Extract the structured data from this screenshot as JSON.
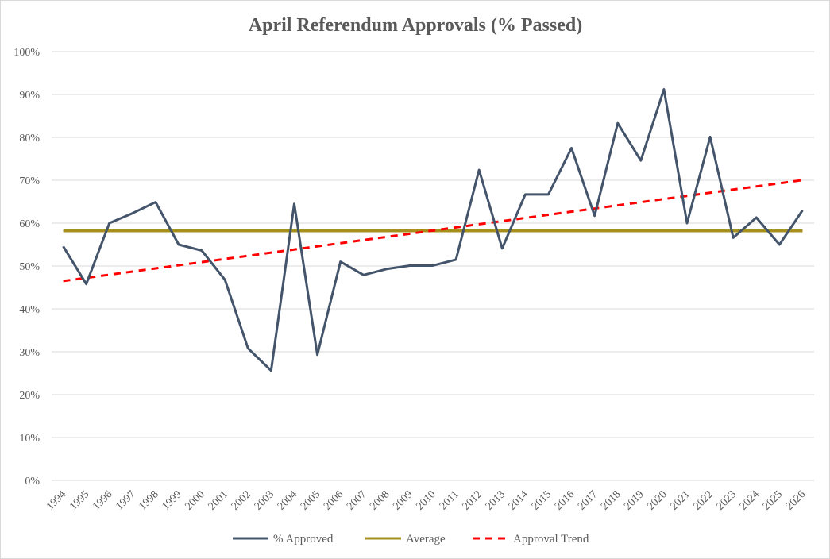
{
  "chart_data": {
    "type": "line",
    "title": "April Referendum Approvals (% Passed)",
    "xlabel": "",
    "ylabel": "",
    "categories": [
      "1994",
      "1995",
      "1996",
      "1997",
      "1998",
      "1999",
      "2000",
      "2001",
      "2002",
      "2003",
      "2004",
      "2005",
      "2006",
      "2007",
      "2008",
      "2009",
      "2010",
      "2011",
      "2012",
      "2013",
      "2014",
      "2015",
      "2016",
      "2017",
      "2018",
      "2019",
      "2020",
      "2021",
      "2022",
      "2023",
      "2024",
      "2025",
      "2026"
    ],
    "ylim": [
      0,
      100
    ],
    "yticks": [
      0,
      10,
      20,
      30,
      40,
      50,
      60,
      70,
      80,
      90,
      100
    ],
    "ytick_labels": [
      "0%",
      "10%",
      "20%",
      "30%",
      "40%",
      "50%",
      "60%",
      "70%",
      "80%",
      "90%",
      "100%"
    ],
    "grid": true,
    "legend_position": "bottom",
    "series": [
      {
        "name": "% Approved",
        "style": "solid",
        "color": "#44546a",
        "values": [
          54.6,
          45.8,
          60.0,
          62.3,
          64.9,
          55.0,
          53.6,
          46.8,
          30.8,
          25.6,
          64.5,
          29.3,
          51.0,
          47.9,
          49.3,
          50.1,
          50.1,
          51.5,
          72.4,
          54.1,
          66.7,
          66.7,
          77.5,
          61.7,
          83.3,
          74.6,
          91.2,
          60.0,
          80.1,
          56.6,
          61.3,
          55.0,
          63.0
        ]
      },
      {
        "name": "Average",
        "style": "solid",
        "color": "#a6901d",
        "values": [
          58.2,
          58.2,
          58.2,
          58.2,
          58.2,
          58.2,
          58.2,
          58.2,
          58.2,
          58.2,
          58.2,
          58.2,
          58.2,
          58.2,
          58.2,
          58.2,
          58.2,
          58.2,
          58.2,
          58.2,
          58.2,
          58.2,
          58.2,
          58.2,
          58.2,
          58.2,
          58.2,
          58.2,
          58.2,
          58.2,
          58.2,
          58.2,
          58.2
        ]
      },
      {
        "name": "Approval Trend",
        "style": "dashed",
        "color": "#ff0000",
        "values": [
          46.5,
          47.24,
          47.97,
          48.71,
          49.44,
          50.18,
          50.91,
          51.65,
          52.38,
          53.12,
          53.85,
          54.59,
          55.32,
          56.06,
          56.79,
          57.53,
          58.26,
          59.0,
          59.74,
          60.47,
          61.21,
          61.94,
          62.68,
          63.41,
          64.15,
          64.88,
          65.62,
          66.35,
          67.09,
          67.82,
          68.56,
          69.29,
          70.03
        ]
      }
    ]
  }
}
